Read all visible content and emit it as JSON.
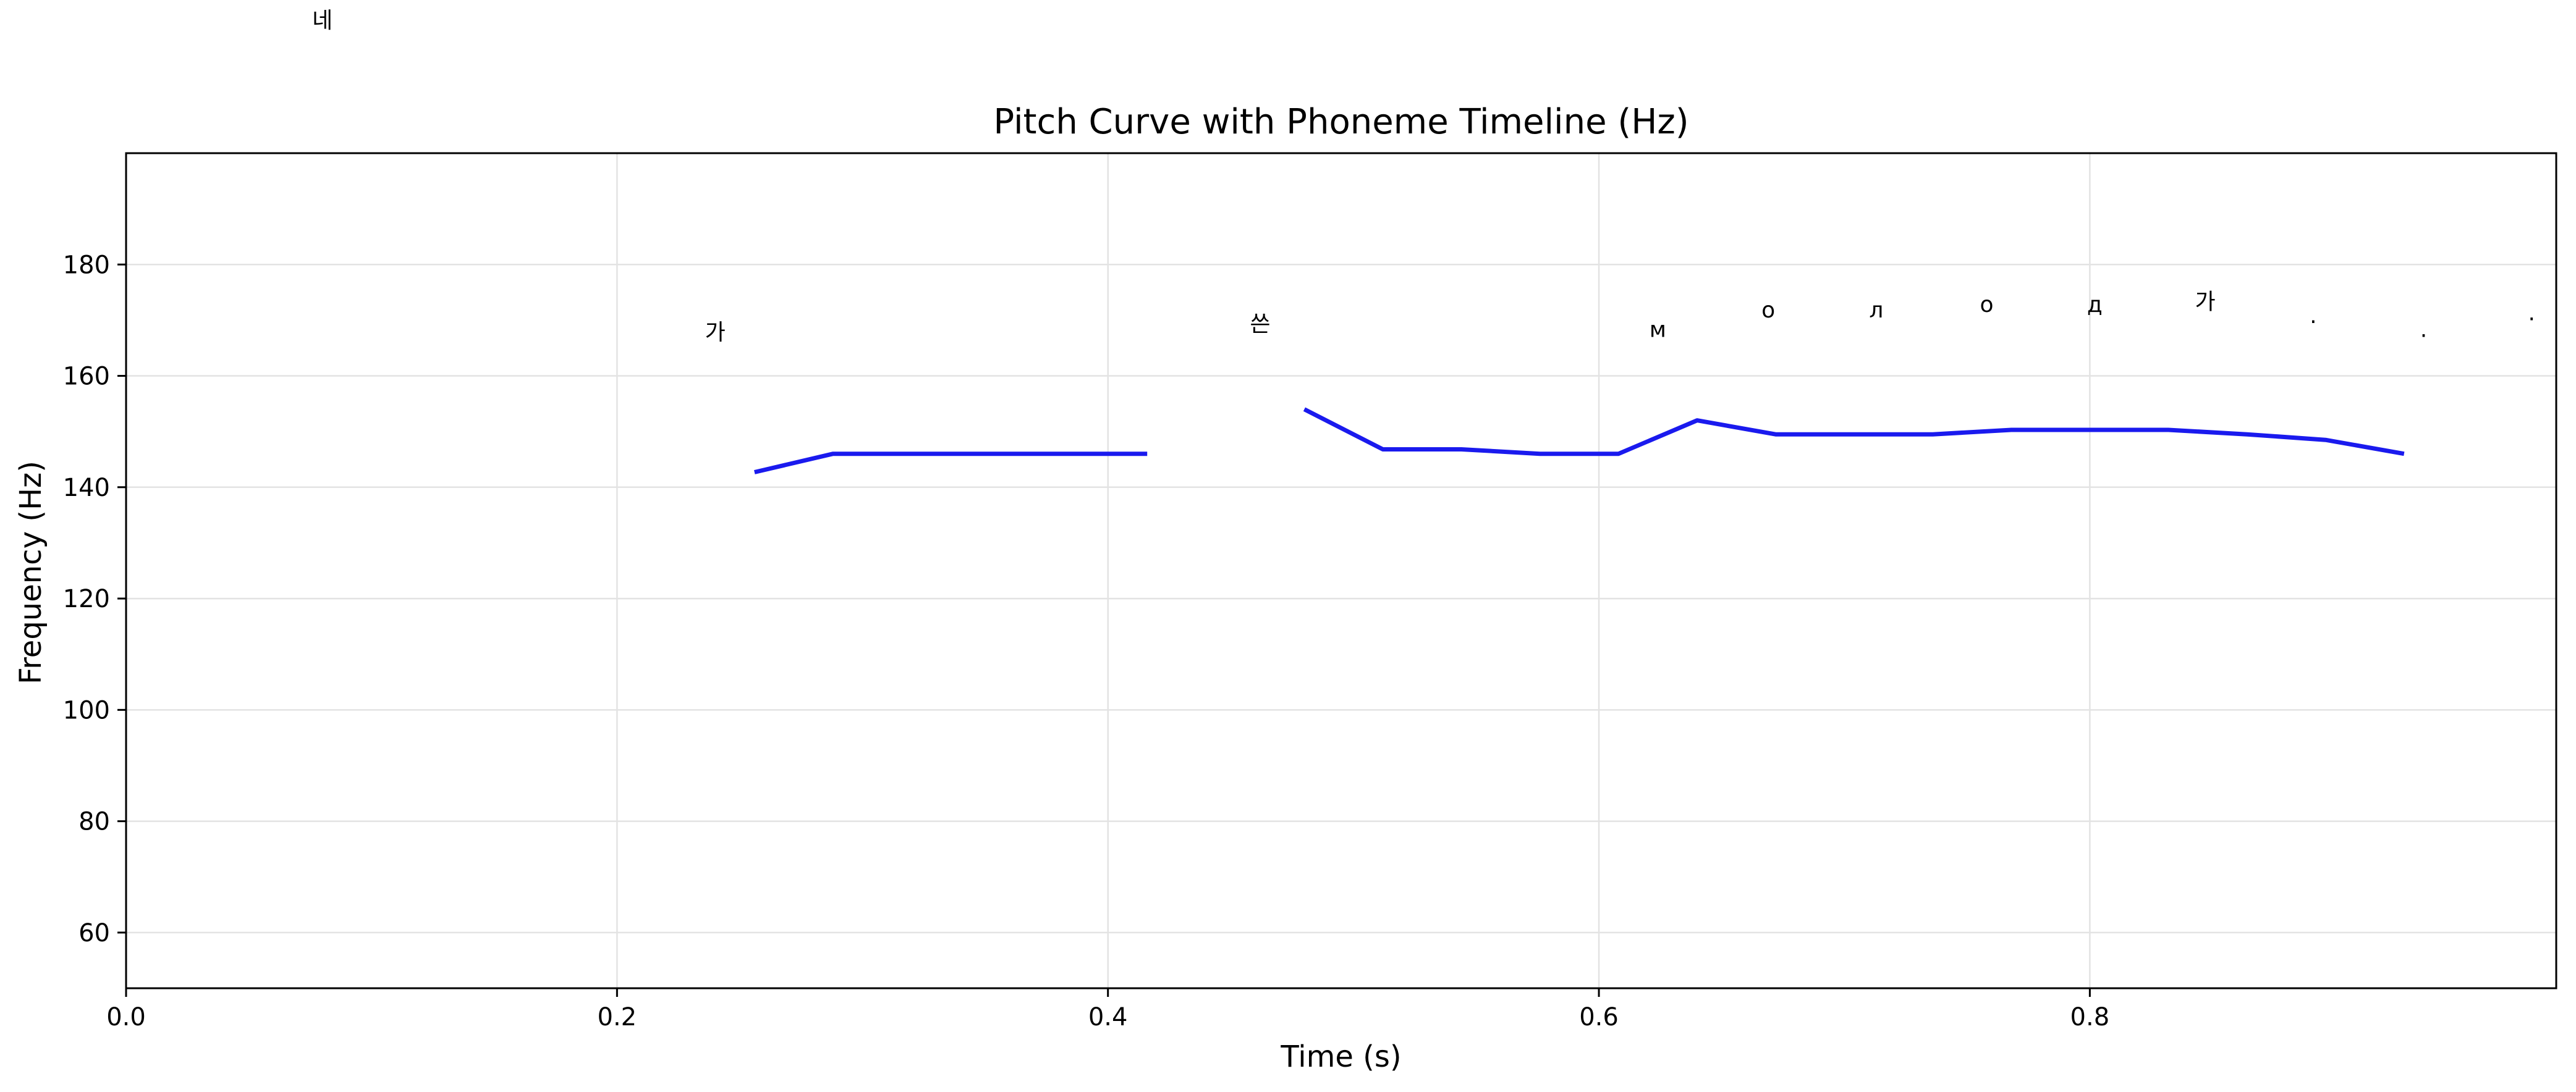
{
  "chart_data": {
    "type": "line",
    "title": "Pitch Curve with Phoneme Timeline (Hz)",
    "xlabel": "Time (s)",
    "ylabel": "Frequency (Hz)",
    "xlim": [
      0.0,
      0.99
    ],
    "ylim": [
      50,
      200
    ],
    "x_ticks": [
      0.0,
      0.2,
      0.4,
      0.6,
      0.8
    ],
    "x_tick_labels": [
      "0.0",
      "0.2",
      "0.4",
      "0.6",
      "0.8"
    ],
    "y_ticks": [
      60,
      80,
      100,
      120,
      140,
      160,
      180
    ],
    "y_tick_labels": [
      "60",
      "80",
      "100",
      "120",
      "140",
      "160",
      "180"
    ],
    "grid": true,
    "series": [
      {
        "color": "#1a1aee",
        "segments": [
          [
            [
              0.256,
              142.7
            ],
            [
              0.288,
              146.0
            ],
            [
              0.32,
              146.0
            ],
            [
              0.352,
              146.0
            ],
            [
              0.384,
              146.0
            ],
            [
              0.416,
              146.0
            ]
          ],
          [
            [
              0.48,
              154.0
            ],
            [
              0.512,
              146.8
            ],
            [
              0.544,
              146.8
            ],
            [
              0.576,
              146.0
            ],
            [
              0.608,
              146.0
            ],
            [
              0.64,
              152.0
            ],
            [
              0.672,
              149.5
            ],
            [
              0.704,
              149.5
            ],
            [
              0.736,
              149.5
            ],
            [
              0.768,
              150.3
            ],
            [
              0.8,
              150.3
            ],
            [
              0.832,
              150.3
            ],
            [
              0.864,
              149.5
            ],
            [
              0.896,
              148.5
            ],
            [
              0.928,
              146.0
            ]
          ]
        ]
      }
    ],
    "annotations": [
      {
        "text": "네",
        "x": 0.08,
        "y": 222.5
      },
      {
        "text": "가",
        "x": 0.24,
        "y": 166.5
      },
      {
        "text": "쓴",
        "x": 0.462,
        "y": 168.0
      },
      {
        "text": "м",
        "x": 0.624,
        "y": 167.0
      },
      {
        "text": "о",
        "x": 0.669,
        "y": 170.5
      },
      {
        "text": "л",
        "x": 0.713,
        "y": 170.5
      },
      {
        "text": "о",
        "x": 0.758,
        "y": 171.5
      },
      {
        "text": "д",
        "x": 0.802,
        "y": 171.5
      },
      {
        "text": "가",
        "x": 0.847,
        "y": 172.0
      },
      {
        "text": ".",
        "x": 0.891,
        "y": 169.5
      },
      {
        "text": ".",
        "x": 0.936,
        "y": 167.0
      },
      {
        "text": ".",
        "x": 0.98,
        "y": 170.0
      }
    ]
  }
}
